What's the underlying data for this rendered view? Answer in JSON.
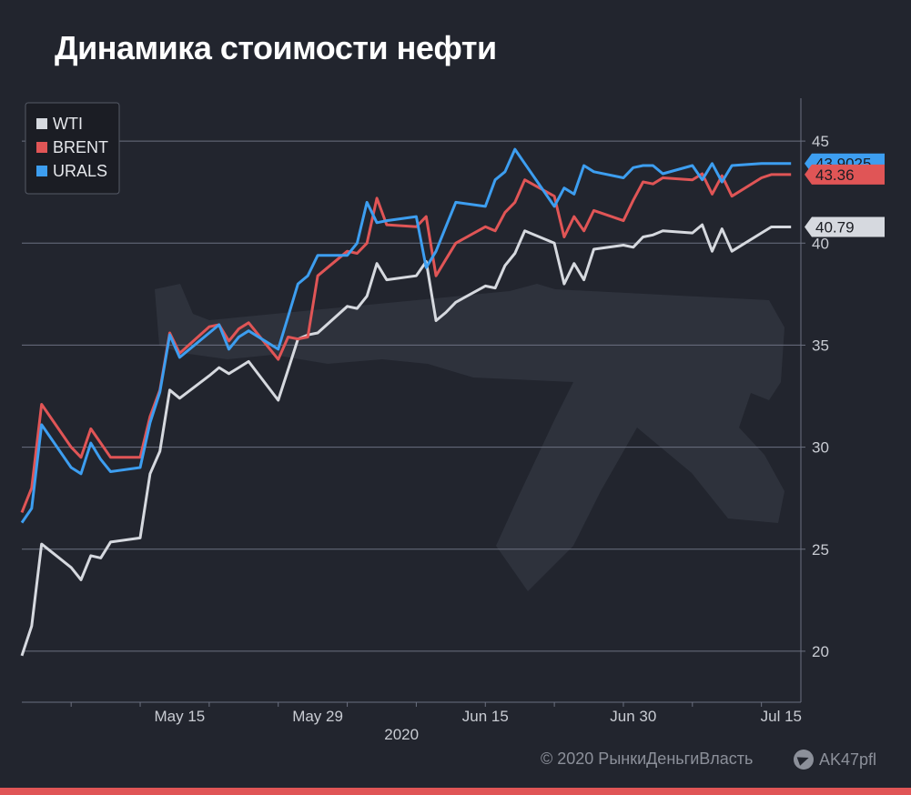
{
  "title": "Динамика стоимости нефти",
  "footer": {
    "copyright": "© 2020  РынкиДеньгиВласть",
    "telegram": "AK47pfl",
    "telegram_icon": "telegram-icon"
  },
  "colors": {
    "background": "#22252e",
    "wti": "#d6d9df",
    "brent": "#e05556",
    "urals": "#3d9ef0",
    "grid": "#6b7080",
    "bottom_bar": "#e05556"
  },
  "chart_data": {
    "type": "line",
    "title": "",
    "xlabel": "2020",
    "ylabel": "",
    "x": [
      "2020-04-29",
      "2020-04-30",
      "2020-05-01",
      "2020-05-04",
      "2020-05-05",
      "2020-05-06",
      "2020-05-07",
      "2020-05-08",
      "2020-05-11",
      "2020-05-12",
      "2020-05-13",
      "2020-05-14",
      "2020-05-15",
      "2020-05-18",
      "2020-05-19",
      "2020-05-20",
      "2020-05-21",
      "2020-05-22",
      "2020-05-25",
      "2020-05-26",
      "2020-05-27",
      "2020-05-28",
      "2020-05-29",
      "2020-06-01",
      "2020-06-02",
      "2020-06-03",
      "2020-06-04",
      "2020-06-05",
      "2020-06-08",
      "2020-06-09",
      "2020-06-10",
      "2020-06-11",
      "2020-06-12",
      "2020-06-15",
      "2020-06-16",
      "2020-06-17",
      "2020-06-18",
      "2020-06-19",
      "2020-06-22",
      "2020-06-23",
      "2020-06-24",
      "2020-06-25",
      "2020-06-26",
      "2020-06-29",
      "2020-06-30",
      "2020-07-01",
      "2020-07-02",
      "2020-07-03",
      "2020-07-06",
      "2020-07-07",
      "2020-07-08",
      "2020-07-09",
      "2020-07-10",
      "2020-07-13",
      "2020-07-14",
      "2020-07-15",
      "2020-07-16"
    ],
    "x_ticks": [
      {
        "date": "2020-05-15",
        "label": "May 15"
      },
      {
        "date": "2020-05-29",
        "label": "May 29"
      },
      {
        "date": "2020-06-15",
        "label": "Jun 15"
      },
      {
        "date": "2020-06-30",
        "label": "Jun 30"
      },
      {
        "date": "2020-07-15",
        "label": "Jul 15"
      }
    ],
    "xlim": [
      "2020-04-29",
      "2020-07-17"
    ],
    "ylim": [
      17.5,
      47.1
    ],
    "y_ticks": [
      20,
      25,
      30,
      35,
      40,
      45
    ],
    "grid": true,
    "legend_position": "top-left",
    "series": [
      {
        "name": "WTI",
        "color": "#d6d9df",
        "values": [
          19.78,
          21.23,
          25.25,
          24.1,
          23.5,
          24.68,
          24.57,
          25.35,
          25.55,
          28.7,
          29.8,
          32.8,
          32.4,
          33.5,
          33.9,
          33.6,
          33.9,
          34.2,
          32.3,
          33.8,
          35.3,
          35.5,
          35.6,
          36.9,
          36.8,
          37.4,
          39.0,
          38.2,
          38.4,
          39.1,
          36.2,
          36.6,
          37.1,
          37.9,
          37.8,
          38.9,
          39.5,
          40.6,
          40.0,
          38.0,
          39.0,
          38.2,
          39.7,
          39.9,
          39.8,
          40.3,
          40.4,
          40.6,
          40.5,
          40.9,
          39.6,
          40.7,
          39.6,
          40.5,
          40.79,
          40.79,
          40.79
        ]
      },
      {
        "name": "BRENT",
        "color": "#e05556",
        "values": [
          26.8,
          28.0,
          32.1,
          30.0,
          29.5,
          30.9,
          30.2,
          29.5,
          29.5,
          31.5,
          32.8,
          35.6,
          34.6,
          35.9,
          36.0,
          35.2,
          35.8,
          36.1,
          34.3,
          35.4,
          35.3,
          35.4,
          38.4,
          39.6,
          39.5,
          40.0,
          42.2,
          40.9,
          40.8,
          41.3,
          38.4,
          39.2,
          40.0,
          40.8,
          40.6,
          41.5,
          42.0,
          43.1,
          42.3,
          40.3,
          41.3,
          40.6,
          41.6,
          41.1,
          42.1,
          43.0,
          42.9,
          43.2,
          43.1,
          43.4,
          42.4,
          43.3,
          42.3,
          43.2,
          43.36,
          43.36,
          43.36
        ]
      },
      {
        "name": "URALS",
        "color": "#3d9ef0",
        "values": [
          26.3,
          27.0,
          31.1,
          29.0,
          28.7,
          30.2,
          29.4,
          28.8,
          29.0,
          31.2,
          32.7,
          35.5,
          34.4,
          35.6,
          36.0,
          34.8,
          35.4,
          35.7,
          34.8,
          36.4,
          38.0,
          38.4,
          39.4,
          39.4,
          40.0,
          42.0,
          41.0,
          41.1,
          41.3,
          38.8,
          39.6,
          40.8,
          42.0,
          41.8,
          43.1,
          43.5,
          44.6,
          43.9,
          41.8,
          42.7,
          42.4,
          43.8,
          43.5,
          43.2,
          43.7,
          43.8,
          43.8,
          43.4,
          43.8,
          43.1,
          43.9,
          43.0,
          43.8,
          43.9025,
          43.9025,
          43.9025,
          43.9025
        ]
      }
    ],
    "last_value_labels": [
      {
        "series": "URALS",
        "text": "43.9025"
      },
      {
        "series": "BRENT",
        "text": "43.36"
      },
      {
        "series": "WTI",
        "text": "40.79"
      }
    ]
  }
}
